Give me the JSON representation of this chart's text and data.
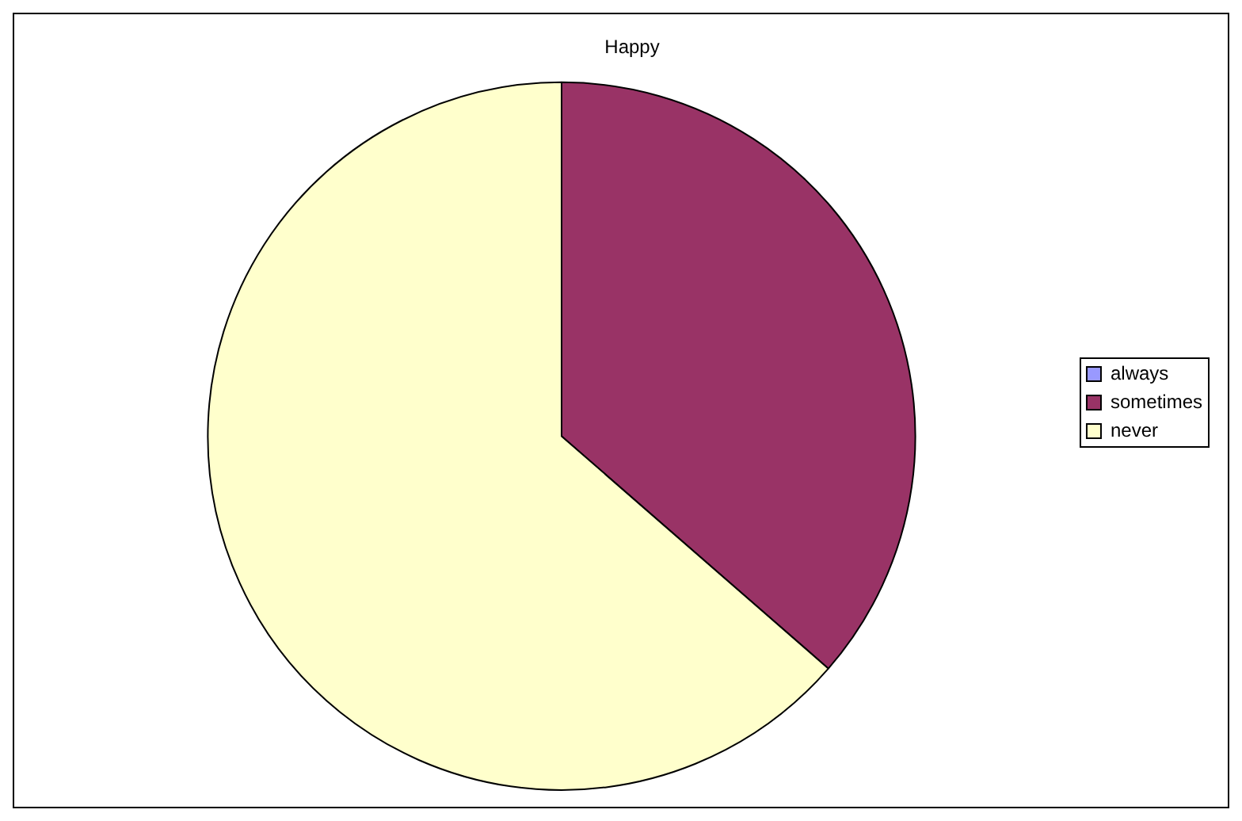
{
  "chart_data": {
    "type": "pie",
    "title": "Happy",
    "categories": [
      "always",
      "sometimes",
      "never"
    ],
    "values": [
      0,
      36.4,
      63.6
    ],
    "colors": [
      "#9999ff",
      "#993366",
      "#ffffcc"
    ],
    "legend": "right"
  }
}
